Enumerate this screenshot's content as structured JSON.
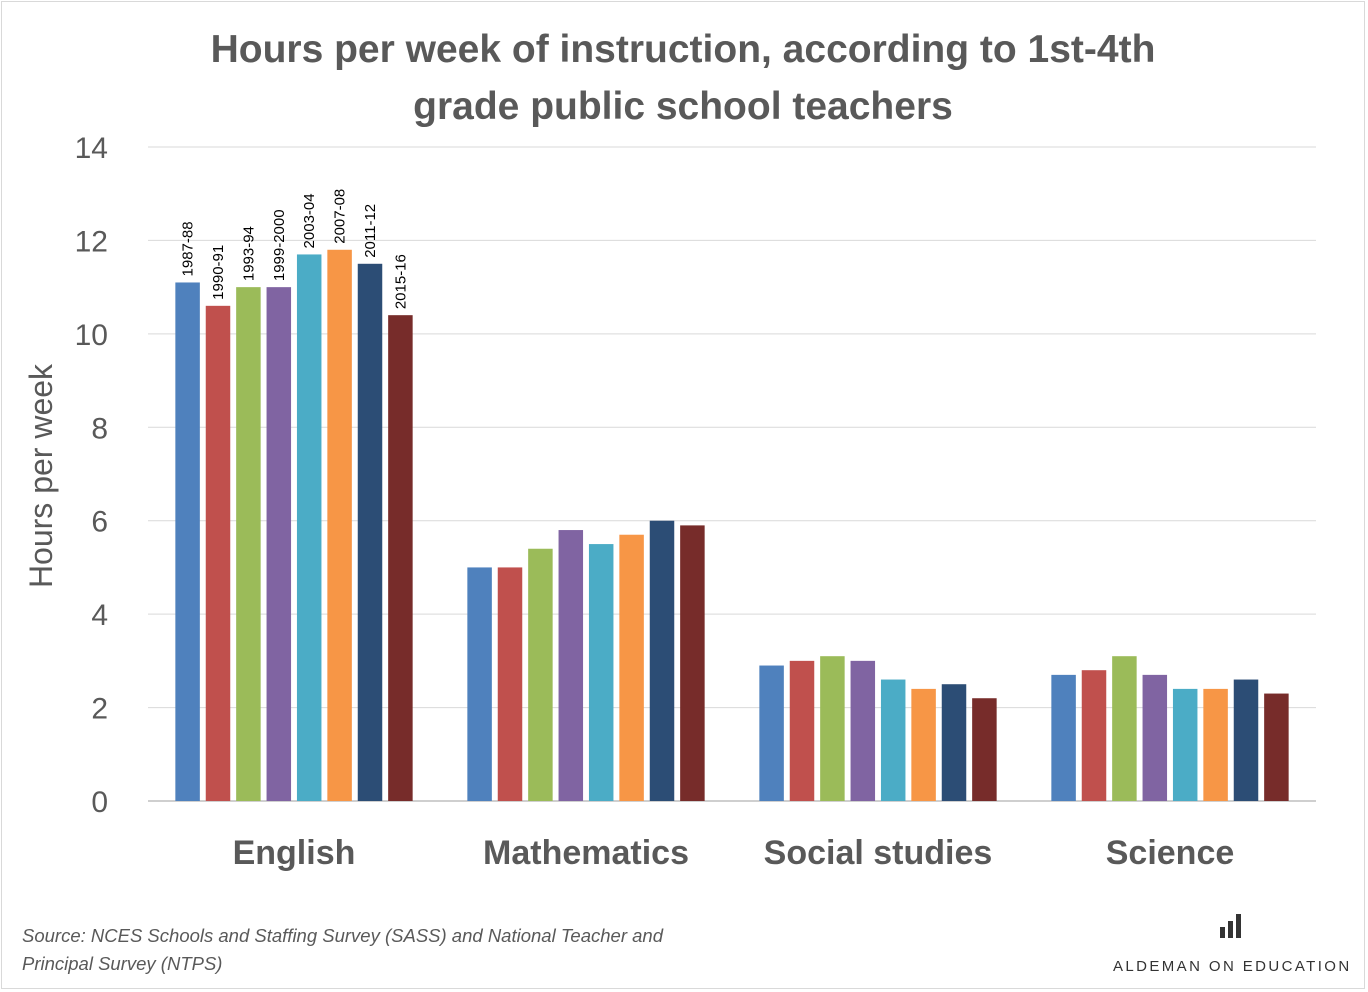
{
  "chart_data": {
    "type": "bar",
    "title_lines": [
      "Hours per week of instruction,  according to 1st-4th",
      "grade public school teachers"
    ],
    "ylabel": "Hours per week",
    "ylim": [
      0,
      14
    ],
    "yticks": [
      0,
      2,
      4,
      6,
      8,
      10,
      12,
      14
    ],
    "grid": true,
    "categories": [
      "English",
      "Mathematics",
      "Social studies",
      "Science"
    ],
    "series": [
      {
        "name": "1987-88",
        "color": "#4f81bd",
        "values": [
          11.1,
          5.0,
          2.9,
          2.7
        ]
      },
      {
        "name": "1990-91",
        "color": "#c0504d",
        "values": [
          10.6,
          5.0,
          3.0,
          2.8
        ]
      },
      {
        "name": "1993-94",
        "color": "#9bbb59",
        "values": [
          11.0,
          5.4,
          3.1,
          3.1
        ]
      },
      {
        "name": "1999-2000",
        "color": "#8064a2",
        "values": [
          11.0,
          5.8,
          3.0,
          2.7
        ]
      },
      {
        "name": "2003-04",
        "color": "#4bacc6",
        "values": [
          11.7,
          5.5,
          2.6,
          2.4
        ]
      },
      {
        "name": "2007-08",
        "color": "#f79646",
        "values": [
          11.8,
          5.7,
          2.4,
          2.4
        ]
      },
      {
        "name": "2011-12",
        "color": "#2c4d75",
        "values": [
          11.5,
          6.0,
          2.5,
          2.6
        ]
      },
      {
        "name": "2015-16",
        "color": "#772c2a",
        "values": [
          10.4,
          5.9,
          2.2,
          2.3
        ]
      }
    ],
    "series_labels_on_category": "English"
  },
  "source_text": "Source: NCES Schools and Staffing Survey (SASS) and National Teacher and Principal Survey (NTPS)",
  "brand": {
    "text": "ALDEMAN ON EDUCATION",
    "logo_icon": "bar-chart-icon"
  },
  "colors": {
    "text": "#595959",
    "grid": "#d9d9d9"
  }
}
